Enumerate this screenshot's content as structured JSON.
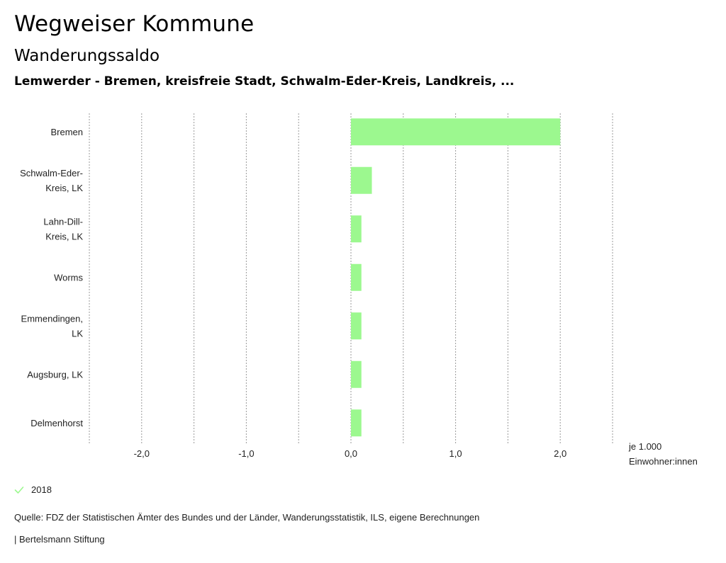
{
  "header": {
    "title": "Wegweiser Kommune",
    "subtitle": "Wanderungssaldo",
    "region_line": "Lemwerder - Bremen, kreisfreie Stadt, Schwalm-Eder-Kreis, Landkreis, ..."
  },
  "chart_data": {
    "type": "bar",
    "orientation": "horizontal",
    "categories": [
      [
        "Bremen"
      ],
      [
        "Schwalm-Eder-",
        "Kreis, LK"
      ],
      [
        "Lahn-Dill-",
        "Kreis, LK"
      ],
      [
        "Worms"
      ],
      [
        "Emmendingen,",
        "LK"
      ],
      [
        "Augsburg, LK"
      ],
      [
        "Delmenhorst"
      ]
    ],
    "series": [
      {
        "name": "2018",
        "color": "#9cf88f",
        "values": [
          2.0,
          0.2,
          0.1,
          0.1,
          0.1,
          0.1,
          0.1
        ]
      }
    ],
    "xlim": [
      -2.5,
      2.5
    ],
    "grid_values": [
      -2.5,
      -2.0,
      -1.5,
      -1.0,
      -0.5,
      0.0,
      0.5,
      1.0,
      1.5,
      2.0,
      2.5
    ],
    "tick_values": [
      -2.0,
      -1.0,
      0.0,
      1.0,
      2.0
    ],
    "tick_labels": [
      "-2,0",
      "-1,0",
      "0,0",
      "1,0",
      "2,0"
    ],
    "unit_label": [
      "je 1.000",
      "Einwohner:innen"
    ],
    "grid": true
  },
  "legend": {
    "icon": "check-icon",
    "label": "2018",
    "color": "#9cf88f"
  },
  "footer": {
    "source": "Quelle: FDZ der Statistischen Ämter des Bundes und der Länder, Wanderungsstatistik, ILS, eigene Berechnungen",
    "credit": "| Bertelsmann Stiftung"
  }
}
